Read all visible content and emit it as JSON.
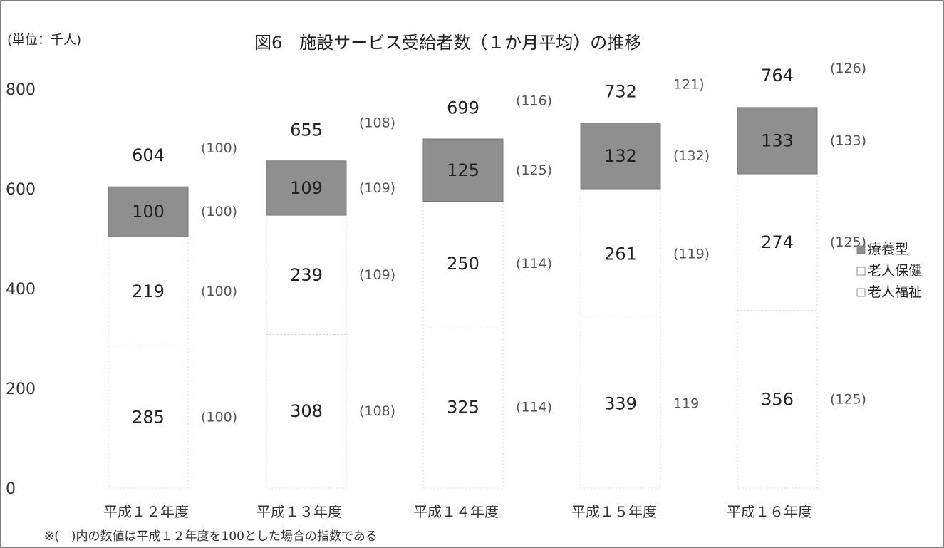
{
  "header": {
    "unit_label": "(単位：千人)",
    "title": "図6　施設サービス受給者数（１か月平均）の推移"
  },
  "footer": {
    "note": "※(　)内の数値は平成１２年度を100とした場合の指数である"
  },
  "colors": {
    "ryoyo": "#8f8f8f",
    "roujin_hoken": "#ffffff",
    "roujin_fukushi": "#ffffff",
    "outline": "#bbbbbb",
    "frame": "#555555"
  },
  "chart_data": {
    "type": "bar",
    "stacked": true,
    "categories": [
      "平成１２年度",
      "平成１３年度",
      "平成１４年度",
      "平成１５年度",
      "平成１６年度"
    ],
    "series": [
      {
        "name": "老人福祉",
        "values": [
          285,
          308,
          325,
          339,
          356
        ],
        "index": [
          "(100)",
          "(108)",
          "(114)",
          "119",
          "(125)"
        ]
      },
      {
        "name": "老人保健",
        "values": [
          219,
          239,
          250,
          261,
          274
        ],
        "index": [
          "(100)",
          "(109)",
          "(114)",
          "(119)",
          "(125)"
        ]
      },
      {
        "name": "療養型",
        "values": [
          100,
          109,
          125,
          132,
          133
        ],
        "index": [
          "(100)",
          "(109)",
          "(125)",
          "(132)",
          "(133)"
        ]
      }
    ],
    "totals": [
      604,
      655,
      699,
      732,
      764
    ],
    "total_index": [
      "(100)",
      "(108)",
      "(116)",
      "121)",
      "(126)"
    ],
    "legend": [
      "療養型",
      "老人保健",
      "老人福祉"
    ],
    "ylim": [
      0,
      800
    ],
    "yticks": [
      0,
      200,
      400,
      600,
      800
    ],
    "legend_position": "right"
  }
}
